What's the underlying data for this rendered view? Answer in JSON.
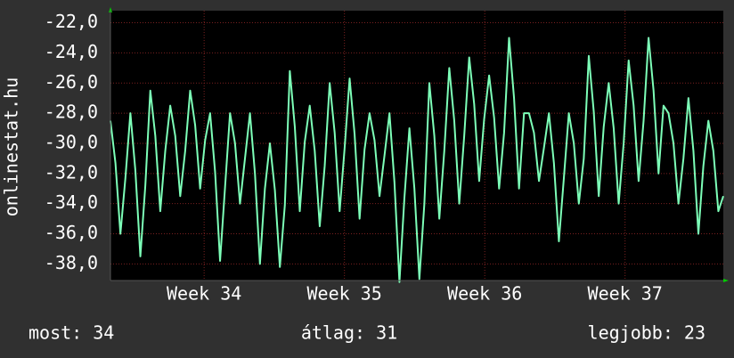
{
  "chart_data": {
    "type": "line",
    "ylabel": "onlinestat.hu",
    "x": [
      0,
      0.25,
      0.5,
      0.75,
      1,
      1.25,
      1.5,
      1.75,
      2,
      2.25,
      2.5,
      2.75,
      3,
      3.25,
      3.5,
      3.75,
      4,
      4.25,
      4.5,
      4.75,
      5,
      5.25,
      5.5,
      5.75,
      6,
      6.25,
      6.5,
      6.75,
      7,
      7.25,
      7.5,
      7.75,
      8,
      8.25,
      8.5,
      8.75,
      9,
      9.25,
      9.5,
      9.75,
      10,
      10.25,
      10.5,
      10.75,
      11,
      11.25,
      11.5,
      11.75,
      12,
      12.25,
      12.5,
      12.75,
      13,
      13.25,
      13.5,
      13.75,
      14,
      14.25,
      14.5,
      14.75,
      15,
      15.25,
      15.5,
      15.75,
      16,
      16.25,
      16.5,
      16.75,
      17,
      17.25,
      17.5,
      17.75,
      18,
      18.25,
      18.5,
      18.75,
      19,
      19.25,
      19.5,
      19.75,
      20,
      20.25,
      20.5,
      20.75,
      21,
      21.25,
      21.5,
      21.75,
      22,
      22.25,
      22.5,
      22.75,
      23,
      23.25,
      23.5,
      23.75,
      24,
      24.25,
      24.5,
      24.75,
      25,
      25.25,
      25.5,
      25.75,
      26,
      26.25,
      26.5,
      26.75,
      27,
      27.25,
      27.5,
      27.75,
      28,
      28.25,
      28.5,
      28.75,
      29,
      29.25,
      29.5,
      29.75,
      30,
      30.25,
      30.5,
      30.75
    ],
    "series": [
      {
        "name": "onlinestat.hu",
        "color": "#7dffb8",
        "values": [
          -28.5,
          -31.3,
          -36,
          -32.3,
          -28,
          -31.8,
          -37.5,
          -32.8,
          -26.5,
          -29.5,
          -34.5,
          -30.5,
          -27.5,
          -29.5,
          -33.5,
          -30.5,
          -26.5,
          -28.8,
          -33,
          -29.8,
          -28,
          -31.9,
          -37.8,
          -32.9,
          -28,
          -30,
          -34,
          -31,
          -28,
          -32,
          -38,
          -33,
          -30,
          -33.1,
          -38.2,
          -34.1,
          -25.2,
          -28.9,
          -34.5,
          -29.9,
          -27.5,
          -30.5,
          -35.5,
          -31.5,
          -26,
          -29.3,
          -34.5,
          -30.3,
          -25.7,
          -29.4,
          -35,
          -30.4,
          -28,
          -29.8,
          -33.5,
          -30.8,
          -28,
          -32.6,
          -39.2,
          -33.6,
          -29,
          -33,
          -39,
          -34,
          -26,
          -29.5,
          -35,
          -30.5,
          -25,
          -28.5,
          -34,
          -29.5,
          -24.3,
          -27.4,
          -32.5,
          -28.4,
          -25.5,
          -28.3,
          -33,
          -29.3,
          -23,
          -27,
          -33,
          -28,
          -28,
          -29.3,
          -32.5,
          -30.3,
          -28,
          -31.3,
          -36.5,
          -32.3,
          -28,
          -30,
          -34,
          -31,
          -24.2,
          -27.9,
          -33.5,
          -28.9,
          -26,
          -29,
          -34,
          -30,
          -24.5,
          -27.5,
          -32.5,
          -28.5,
          -23,
          -26.5,
          -32,
          -27.5,
          -28,
          -30,
          -34,
          -31,
          -27,
          -30.5,
          -36,
          -31.5,
          -28.5,
          -30.5,
          -34.5,
          -33.5
        ]
      }
    ],
    "xlim": [
      0,
      30.75
    ],
    "xticks": [
      {
        "value": 4.7,
        "label": "Week 34"
      },
      {
        "value": 11.74,
        "label": "Week 35"
      },
      {
        "value": 18.78,
        "label": "Week 36"
      },
      {
        "value": 25.82,
        "label": "Week 37"
      }
    ],
    "ylim": [
      -39.1,
      -21.2
    ],
    "yticks": [
      {
        "value": -22,
        "label": "-22,0"
      },
      {
        "value": -24,
        "label": "-24,0"
      },
      {
        "value": -26,
        "label": "-26,0"
      },
      {
        "value": -28,
        "label": "-28,0"
      },
      {
        "value": -30,
        "label": "-30,0"
      },
      {
        "value": -32,
        "label": "-32,0"
      },
      {
        "value": -34,
        "label": "-34,0"
      },
      {
        "value": -36,
        "label": "-36,0"
      },
      {
        "value": -38,
        "label": "-38,0"
      }
    ],
    "grid": true,
    "footer": [
      "most: 34",
      "átlag: 31",
      "legjobb: 23"
    ]
  }
}
